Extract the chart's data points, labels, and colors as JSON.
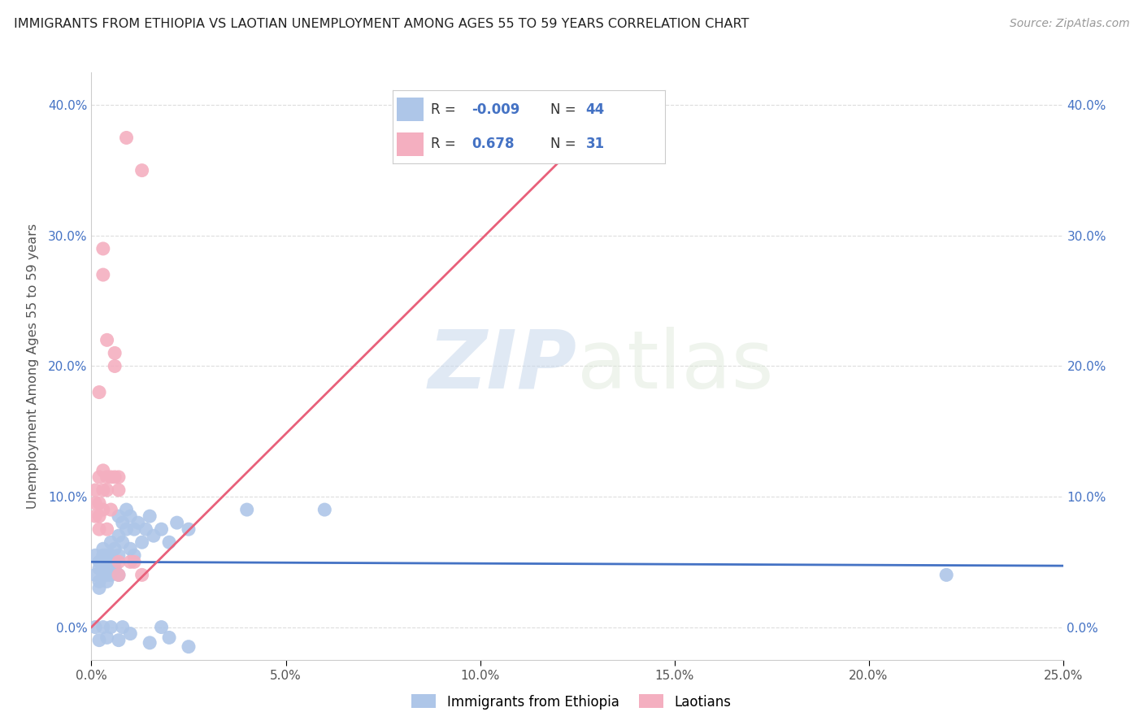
{
  "title": "IMMIGRANTS FROM ETHIOPIA VS LAOTIAN UNEMPLOYMENT AMONG AGES 55 TO 59 YEARS CORRELATION CHART",
  "source": "Source: ZipAtlas.com",
  "ylabel": "Unemployment Among Ages 55 to 59 years",
  "xlim": [
    0.0,
    0.25
  ],
  "ylim": [
    -0.025,
    0.425
  ],
  "xticks": [
    0.0,
    0.05,
    0.1,
    0.15,
    0.2,
    0.25
  ],
  "yticks": [
    0.0,
    0.1,
    0.2,
    0.3,
    0.4
  ],
  "background_color": "#ffffff",
  "grid_color": "#dddddd",
  "watermark_zip": "ZIP",
  "watermark_atlas": "atlas",
  "ethiopia_color": "#aec6e8",
  "ethiopia_edge": "#aec6e8",
  "laotian_color": "#f4afc0",
  "laotian_edge": "#f4afc0",
  "ethiopia_line_color": "#4472c4",
  "laotian_line_color": "#e8607a",
  "r_value_color": "#4472c4",
  "title_color": "#222222",
  "source_color": "#999999",
  "ethiopia_points": [
    [
      0.001,
      0.04
    ],
    [
      0.001,
      0.055
    ],
    [
      0.002,
      0.035
    ],
    [
      0.002,
      0.05
    ],
    [
      0.002,
      0.045
    ],
    [
      0.002,
      0.03
    ],
    [
      0.003,
      0.055
    ],
    [
      0.003,
      0.04
    ],
    [
      0.003,
      0.06
    ],
    [
      0.003,
      0.045
    ],
    [
      0.004,
      0.05
    ],
    [
      0.004,
      0.035
    ],
    [
      0.004,
      0.055
    ],
    [
      0.004,
      0.04
    ],
    [
      0.005,
      0.065
    ],
    [
      0.005,
      0.055
    ],
    [
      0.005,
      0.04
    ],
    [
      0.006,
      0.06
    ],
    [
      0.006,
      0.05
    ],
    [
      0.006,
      0.045
    ],
    [
      0.007,
      0.085
    ],
    [
      0.007,
      0.07
    ],
    [
      0.007,
      0.055
    ],
    [
      0.007,
      0.04
    ],
    [
      0.008,
      0.08
    ],
    [
      0.008,
      0.065
    ],
    [
      0.009,
      0.09
    ],
    [
      0.009,
      0.075
    ],
    [
      0.01,
      0.085
    ],
    [
      0.01,
      0.06
    ],
    [
      0.011,
      0.075
    ],
    [
      0.011,
      0.055
    ],
    [
      0.012,
      0.08
    ],
    [
      0.013,
      0.065
    ],
    [
      0.014,
      0.075
    ],
    [
      0.015,
      0.085
    ],
    [
      0.016,
      0.07
    ],
    [
      0.018,
      0.075
    ],
    [
      0.02,
      0.065
    ],
    [
      0.022,
      0.08
    ],
    [
      0.025,
      0.075
    ],
    [
      0.04,
      0.09
    ],
    [
      0.06,
      0.09
    ],
    [
      0.22,
      0.04
    ],
    [
      0.001,
      0.0
    ],
    [
      0.002,
      -0.01
    ],
    [
      0.003,
      0.0
    ],
    [
      0.004,
      -0.008
    ],
    [
      0.005,
      0.0
    ],
    [
      0.007,
      -0.01
    ],
    [
      0.008,
      0.0
    ],
    [
      0.01,
      -0.005
    ],
    [
      0.015,
      -0.012
    ],
    [
      0.018,
      0.0
    ],
    [
      0.02,
      -0.008
    ],
    [
      0.025,
      -0.015
    ]
  ],
  "laotian_points": [
    [
      0.001,
      0.085
    ],
    [
      0.001,
      0.095
    ],
    [
      0.001,
      0.105
    ],
    [
      0.002,
      0.18
    ],
    [
      0.002,
      0.115
    ],
    [
      0.002,
      0.095
    ],
    [
      0.002,
      0.085
    ],
    [
      0.002,
      0.075
    ],
    [
      0.003,
      0.29
    ],
    [
      0.003,
      0.27
    ],
    [
      0.003,
      0.12
    ],
    [
      0.003,
      0.105
    ],
    [
      0.003,
      0.09
    ],
    [
      0.004,
      0.22
    ],
    [
      0.004,
      0.115
    ],
    [
      0.004,
      0.105
    ],
    [
      0.004,
      0.075
    ],
    [
      0.005,
      0.115
    ],
    [
      0.005,
      0.09
    ],
    [
      0.006,
      0.21
    ],
    [
      0.006,
      0.2
    ],
    [
      0.006,
      0.115
    ],
    [
      0.007,
      0.115
    ],
    [
      0.007,
      0.105
    ],
    [
      0.007,
      0.05
    ],
    [
      0.007,
      0.04
    ],
    [
      0.009,
      0.375
    ],
    [
      0.01,
      0.05
    ],
    [
      0.011,
      0.05
    ],
    [
      0.013,
      0.35
    ],
    [
      0.013,
      0.04
    ]
  ],
  "ethiopia_trend": [
    0.0,
    0.25,
    0.05,
    0.047
  ],
  "laotian_trend": [
    0.0,
    0.135,
    0.0,
    0.4
  ]
}
